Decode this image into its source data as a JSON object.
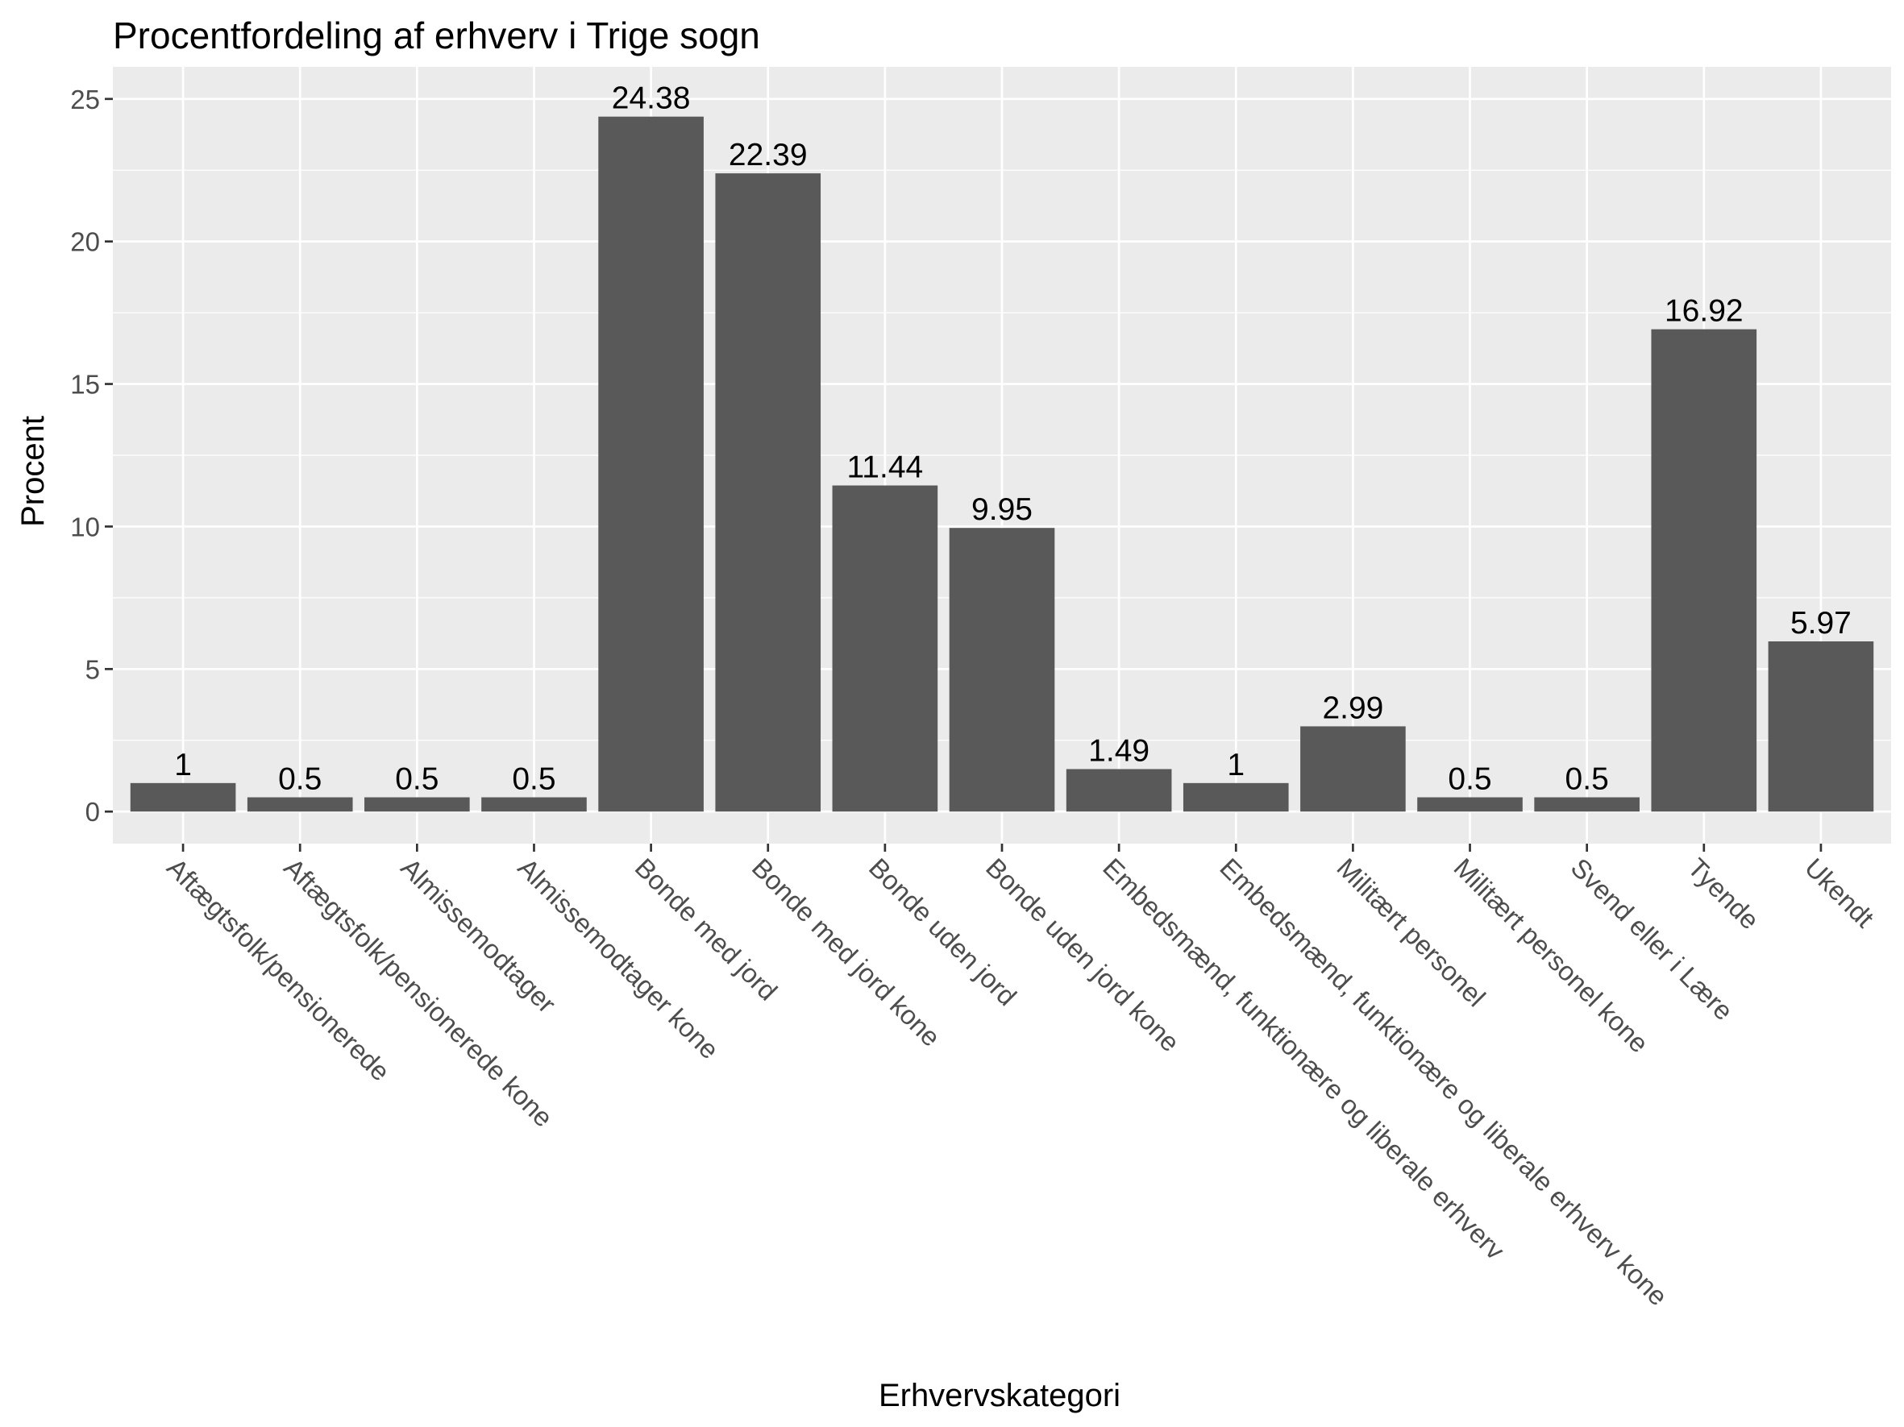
{
  "chart_data": {
    "type": "bar",
    "title": "Procentfordeling af erhverv i Trige sogn",
    "xlabel": "Erhvervskategori",
    "ylabel": "Procent",
    "ylim": [
      0,
      25
    ],
    "yticks": [
      "0",
      "5",
      "10",
      "15",
      "20",
      "25"
    ],
    "grid": true,
    "categories": [
      "Aftægtsfolk/pensionerede",
      "Aftægtsfolk/pensionerede kone",
      "Almissemodtager",
      "Almissemodtager kone",
      "Bonde med jord",
      "Bonde med jord kone",
      "Bonde uden jord",
      "Bonde uden jord kone",
      "Embedsmænd, funktionære og liberale erhverv",
      "Embedsmænd, funktionære og liberale erhverv kone",
      "Militært personel",
      "Militært personel kone",
      "Svend eller i Lære",
      "Tyende",
      "Ukendt"
    ],
    "values": [
      1,
      0.5,
      0.5,
      0.5,
      24.38,
      22.39,
      11.44,
      9.95,
      1.49,
      1,
      2.99,
      0.5,
      0.5,
      16.92,
      5.97
    ],
    "data_labels": [
      "1",
      "0.5",
      "0.5",
      "0.5",
      "24.38",
      "22.39",
      "11.44",
      "9.95",
      "1.49",
      "1",
      "2.99",
      "0.5",
      "0.5",
      "16.92",
      "5.97"
    ],
    "colors": {
      "panel": "#ebebeb",
      "grid": "#ffffff",
      "bar": "#595959"
    }
  }
}
